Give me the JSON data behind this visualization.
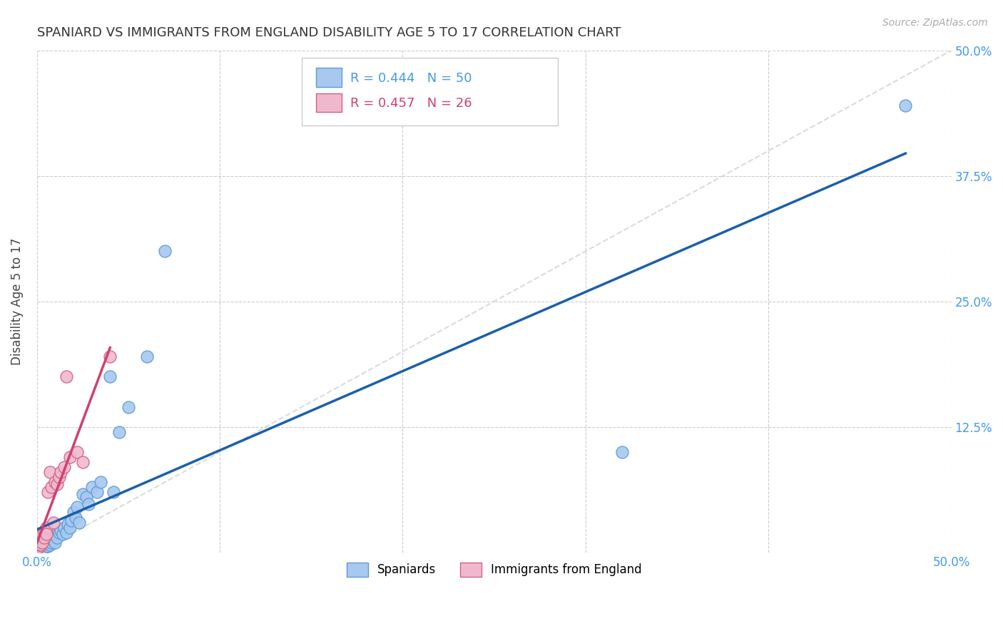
{
  "title": "SPANIARD VS IMMIGRANTS FROM ENGLAND DISABILITY AGE 5 TO 17 CORRELATION CHART",
  "source": "Source: ZipAtlas.com",
  "ylabel": "Disability Age 5 to 17",
  "xlim": [
    0.0,
    0.5
  ],
  "ylim": [
    0.0,
    0.5
  ],
  "background_color": "#ffffff",
  "grid_color": "#cccccc",
  "diagonal_line_color": "#cccccc",
  "spaniards_color": "#a8c8f0",
  "spaniards_edge_color": "#5b9bd5",
  "immigrants_color": "#f0b8cc",
  "immigrants_edge_color": "#d46080",
  "spaniards_line_color": "#1a5faa",
  "immigrants_line_color": "#d04070",
  "R_spaniards": 0.444,
  "N_spaniards": 50,
  "R_immigrants": 0.457,
  "N_immigrants": 26,
  "spaniards_x": [
    0.0005,
    0.001,
    0.001,
    0.0015,
    0.002,
    0.002,
    0.002,
    0.003,
    0.003,
    0.003,
    0.004,
    0.004,
    0.005,
    0.005,
    0.006,
    0.006,
    0.007,
    0.007,
    0.008,
    0.008,
    0.009,
    0.01,
    0.01,
    0.011,
    0.012,
    0.013,
    0.014,
    0.015,
    0.016,
    0.017,
    0.018,
    0.019,
    0.02,
    0.021,
    0.022,
    0.023,
    0.025,
    0.027,
    0.028,
    0.03,
    0.033,
    0.035,
    0.04,
    0.042,
    0.045,
    0.05,
    0.06,
    0.07,
    0.32,
    0.475
  ],
  "spaniards_y": [
    0.002,
    0.003,
    0.001,
    0.004,
    0.003,
    0.005,
    0.002,
    0.004,
    0.006,
    0.002,
    0.008,
    0.005,
    0.007,
    0.01,
    0.006,
    0.009,
    0.008,
    0.012,
    0.01,
    0.015,
    0.012,
    0.01,
    0.018,
    0.015,
    0.02,
    0.022,
    0.018,
    0.025,
    0.02,
    0.028,
    0.025,
    0.032,
    0.04,
    0.035,
    0.045,
    0.03,
    0.058,
    0.055,
    0.048,
    0.065,
    0.06,
    0.07,
    0.175,
    0.06,
    0.12,
    0.145,
    0.195,
    0.3,
    0.1,
    0.445
  ],
  "immigrants_x": [
    0.0005,
    0.001,
    0.001,
    0.0015,
    0.002,
    0.002,
    0.003,
    0.003,
    0.004,
    0.004,
    0.005,
    0.005,
    0.006,
    0.007,
    0.008,
    0.009,
    0.01,
    0.011,
    0.012,
    0.013,
    0.015,
    0.016,
    0.018,
    0.022,
    0.025,
    0.04
  ],
  "immigrants_y": [
    0.005,
    0.008,
    0.01,
    0.012,
    0.008,
    0.015,
    0.01,
    0.018,
    0.02,
    0.015,
    0.025,
    0.018,
    0.06,
    0.08,
    0.065,
    0.03,
    0.07,
    0.068,
    0.075,
    0.08,
    0.085,
    0.175,
    0.095,
    0.1,
    0.09,
    0.195
  ]
}
